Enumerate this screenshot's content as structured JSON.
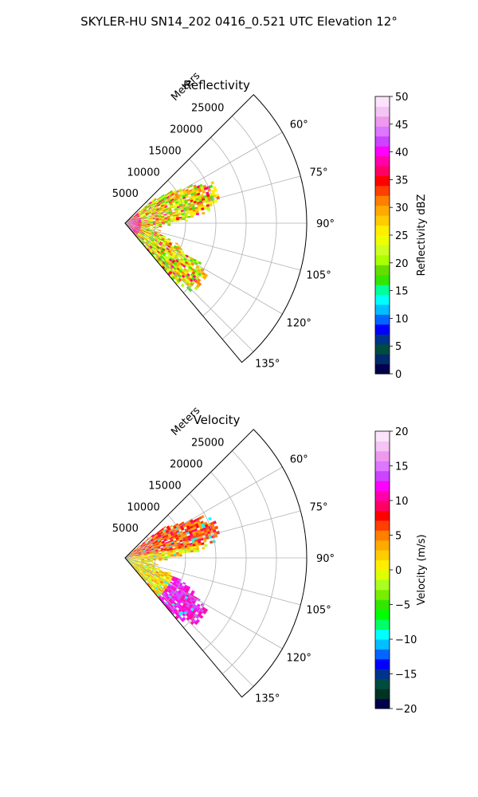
{
  "figure_title": "SKYLER-HU  SN14_202  0416_0.521 UTC Elevation 12°",
  "chart_data": [
    {
      "type": "ppi-sector",
      "title": "Reflectivity",
      "range_axis_label": "Meters",
      "range_ticks": [
        5000,
        10000,
        15000,
        20000,
        25000
      ],
      "range_tick_labels": [
        "5000",
        "10000",
        "15000",
        "20000",
        "25000"
      ],
      "range_lim": [
        0,
        30000
      ],
      "azimuth_lim": [
        45,
        140
      ],
      "azimuth_ticks": [
        60,
        75,
        90,
        105,
        120,
        135
      ],
      "azimuth_tick_labels": [
        "60°",
        "75°",
        "90°",
        "105°",
        "120°",
        "135°"
      ],
      "grid": true,
      "colorbar": {
        "label": "Reflectivity dBZ",
        "range": [
          0,
          50
        ],
        "ticks": [
          0,
          5,
          10,
          15,
          20,
          25,
          30,
          35,
          40,
          45,
          50
        ],
        "tick_labels": [
          "0",
          "5",
          "10",
          "15",
          "20",
          "25",
          "30",
          "35",
          "40",
          "45",
          "50"
        ],
        "colors": [
          "#00004c",
          "#002a6a",
          "#004d40",
          "#00338c",
          "#0000ff",
          "#0066ff",
          "#00bfff",
          "#00ffff",
          "#00ff99",
          "#33e600",
          "#66dd00",
          "#aaff00",
          "#ccff22",
          "#eeff00",
          "#ffee00",
          "#ffcc00",
          "#ffaa00",
          "#ff8000",
          "#ff4000",
          "#ff0000",
          "#ff0066",
          "#ff00aa",
          "#ff00ff",
          "#cc44ff",
          "#dd77ff",
          "#ee99ee",
          "#f4c4f4",
          "#fbe4fb"
        ]
      }
    },
    {
      "type": "ppi-sector",
      "title": "Velocity",
      "range_axis_label": "Meters",
      "range_ticks": [
        5000,
        10000,
        15000,
        20000,
        25000
      ],
      "range_tick_labels": [
        "5000",
        "10000",
        "15000",
        "20000",
        "25000"
      ],
      "range_lim": [
        0,
        30000
      ],
      "azimuth_lim": [
        45,
        140
      ],
      "azimuth_ticks": [
        60,
        75,
        90,
        105,
        120,
        135
      ],
      "azimuth_tick_labels": [
        "60°",
        "75°",
        "90°",
        "105°",
        "120°",
        "135°"
      ],
      "grid": true,
      "colorbar": {
        "label": "Velocity (m/s)",
        "range": [
          -20,
          20
        ],
        "ticks": [
          -20,
          -15,
          -10,
          -5,
          0,
          5,
          10,
          15,
          20
        ],
        "tick_labels": [
          "−20",
          "−15",
          "−10",
          "−5",
          "0",
          "5",
          "10",
          "15",
          "20"
        ],
        "colors": [
          "#00004c",
          "#003322",
          "#004d40",
          "#00338c",
          "#0000ff",
          "#0066ff",
          "#00bfff",
          "#00ffff",
          "#00ff66",
          "#00ff00",
          "#33e600",
          "#77ee00",
          "#aaff22",
          "#ddff00",
          "#ffee00",
          "#ffcc00",
          "#ffaa00",
          "#ff8000",
          "#ff4000",
          "#ff0000",
          "#ff0066",
          "#ff00aa",
          "#ff00ff",
          "#cc44ff",
          "#dd77ff",
          "#ee99ee",
          "#f4c4f4",
          "#fbe4fb"
        ]
      }
    }
  ]
}
